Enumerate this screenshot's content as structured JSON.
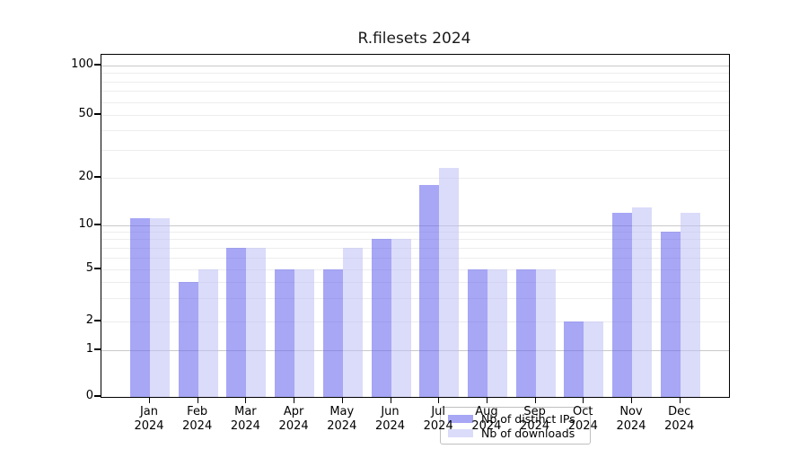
{
  "title": "R.filesets 2024",
  "chart_data": {
    "type": "bar",
    "title": "R.filesets 2024",
    "categories": [
      "Jan 2024",
      "Feb 2024",
      "Mar 2024",
      "Apr 2024",
      "May 2024",
      "Jun 2024",
      "Jul 2024",
      "Aug 2024",
      "Sep 2024",
      "Oct 2024",
      "Nov 2024",
      "Dec 2024"
    ],
    "x_tick_months": [
      "Jan",
      "Feb",
      "Mar",
      "Apr",
      "May",
      "Jun",
      "Jul",
      "Aug",
      "Sep",
      "Oct",
      "Nov",
      "Dec"
    ],
    "x_tick_year": "2024",
    "series": [
      {
        "name": "Nb of distinct IPs",
        "color": "rgba(104,104,238,0.58)",
        "solid_color_hex": "#a8a8f2",
        "values": [
          11,
          4,
          7,
          5,
          5,
          8,
          18,
          5,
          5,
          2,
          12,
          9
        ]
      },
      {
        "name": "Nb of downloads",
        "color": "rgba(190,190,246,0.55)",
        "solid_color_hex": "#dbdbf8",
        "values": [
          11,
          5,
          7,
          5,
          7,
          8,
          23,
          5,
          5,
          2,
          13,
          12
        ]
      }
    ],
    "yticks": [
      0,
      1,
      2,
      5,
      10,
      20,
      50,
      100
    ],
    "yscale": "symlog-like (log above 1, compressed linear 0-1)",
    "ylim": [
      0,
      115
    ],
    "xlabel": "",
    "ylabel": "",
    "grid": true,
    "gridline_minor_values": [
      2,
      3,
      4,
      5,
      6,
      7,
      8,
      9,
      20,
      30,
      40,
      50,
      60,
      70,
      80,
      90
    ],
    "gridline_major_values": [
      1,
      10,
      100
    ],
    "legend": {
      "position": "inside lower center",
      "entries": [
        "Nb of distinct IPs",
        "Nb of downloads"
      ]
    }
  }
}
